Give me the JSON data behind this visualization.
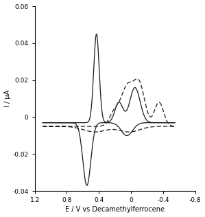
{
  "xlim": [
    1.2,
    -0.8
  ],
  "ylim": [
    -0.04,
    0.06
  ],
  "xlabel": "E / V vs Decamethylferrocene",
  "ylabel": "I / μA",
  "xticks": [
    1.2,
    0.8,
    0.4,
    0.0,
    -0.4,
    -0.8
  ],
  "yticks": [
    -0.04,
    -0.02,
    0.0,
    0.02,
    0.04,
    0.06
  ],
  "background_color": "#ffffff",
  "line_color": "#1a1a1a",
  "figsize": [
    2.99,
    3.16
  ],
  "dpi": 100
}
